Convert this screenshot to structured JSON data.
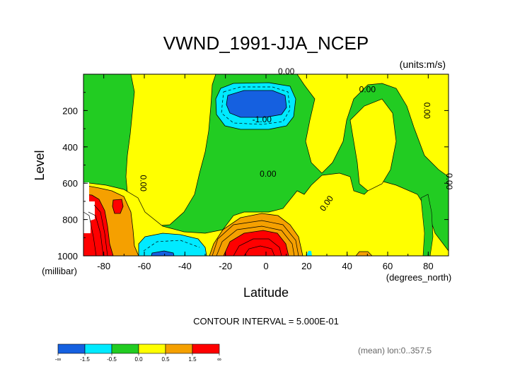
{
  "chart_data": {
    "type": "heatmap",
    "subtype": "filled-contour",
    "title": "VWND_1991-JJA_NCEP",
    "units_label": "(units:m/s)",
    "xlabel": "Latitude",
    "x_units_label": "(degrees_north)",
    "ylabel": "Level",
    "y_units_label": "(millibar)",
    "xlim": [
      -90,
      90
    ],
    "ylim": [
      1000,
      0
    ],
    "x_ticks": [
      -80,
      -60,
      -40,
      -20,
      0,
      20,
      40,
      60,
      80
    ],
    "x_tick_labels": [
      "-80",
      "-60",
      "-40",
      "-20",
      "0",
      "20",
      "40",
      "60",
      "80"
    ],
    "y_ticks": [
      200,
      400,
      600,
      800,
      1000
    ],
    "y_tick_labels": [
      "200",
      "400",
      "600",
      "800",
      "1000"
    ],
    "contour_interval_text": "CONTOUR INTERVAL = 5.000E-01",
    "footer_text": "(mean) lon:0..357.5",
    "contour_labels": [
      {
        "text": "0.00",
        "x": 10,
        "y": 0,
        "rotation": 0
      },
      {
        "text": "0.00",
        "x": 50,
        "y": 100,
        "rotation": 0
      },
      {
        "text": "-1.00",
        "x": -2,
        "y": 265,
        "rotation": 0
      },
      {
        "text": "0.00",
        "x": 78,
        "y": 200,
        "rotation": 90
      },
      {
        "text": "0.00",
        "x": -62,
        "y": 600,
        "rotation": 90
      },
      {
        "text": "0.00",
        "x": 1,
        "y": 565,
        "rotation": 0
      },
      {
        "text": "0.00",
        "x": 31,
        "y": 720,
        "rotation": -55
      },
      {
        "text": "0.00",
        "x": 89,
        "y": 590,
        "rotation": 90
      }
    ],
    "levels": [
      {
        "range": "< -1.5",
        "color": "#1560e0"
      },
      {
        "range": "-1.5 to -0.5",
        "color": "#00eaff"
      },
      {
        "range": "-0.5 to 0.0",
        "color": "#22cc22"
      },
      {
        "range": "0.0 to 0.5",
        "color": "#ffff00"
      },
      {
        "range": "0.5 to 1.5",
        "color": "#f5a000"
      },
      {
        "range": "> 1.5",
        "color": "#ff0000"
      }
    ],
    "colorbar_labels": [
      "-∞",
      "-1.5",
      "-0.5",
      "0.0",
      "0.5",
      "1.5",
      "∞"
    ],
    "regions": [
      {
        "name": "south-polar-jet",
        "value_range": "> 1.5",
        "lat": [
          -88,
          -78
        ],
        "lev": [
          650,
          1000
        ]
      },
      {
        "name": "south-mid-negative",
        "value_range": "-1.5 to -0.5",
        "lat": [
          -62,
          -32
        ],
        "lev": [
          890,
          1000
        ]
      },
      {
        "name": "upper-negative-core",
        "value_range": "< -1.5",
        "lat": [
          -12,
          9
        ],
        "lev": [
          120,
          225
        ]
      },
      {
        "name": "upper-negative",
        "value_range": "-1.5 to -0.5",
        "lat": [
          -19,
          12
        ],
        "lev": [
          100,
          300
        ]
      },
      {
        "name": "tropical-positive-core",
        "value_range": "> 1.5",
        "lat": [
          -20,
          10
        ],
        "lev": [
          890,
          1000
        ]
      },
      {
        "name": "tropical-positive",
        "value_range": "0.5 to 1.5",
        "lat": [
          -25,
          20
        ],
        "lev": [
          780,
          1000
        ]
      }
    ]
  },
  "palette": {
    "blue": "#1560e0",
    "cyan": "#00eaff",
    "green": "#22cc22",
    "yellow": "#ffff00",
    "orange": "#f5a000",
    "red": "#ff0000"
  }
}
